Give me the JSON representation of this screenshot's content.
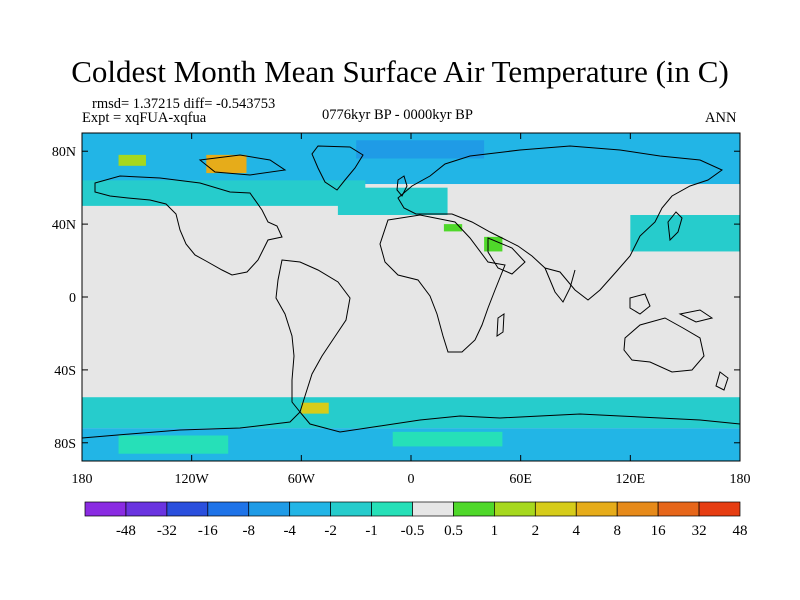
{
  "title": "Coldest Month Mean Surface Air Temperature (in C)",
  "stats": "rmsd= 1.37215 diff= -0.543753",
  "experiment": "Expt = xqFUA-xqfua",
  "period": "0776kyr BP - 0000kyr BP",
  "season": "ANN",
  "colors": {
    "background": "#e6e6e6",
    "coastline": "#000000",
    "land_no_change": "#e6e6e6"
  },
  "chart_data": {
    "type": "heatmap",
    "projection": "cylindrical equidistant",
    "xlim": [
      -180,
      180
    ],
    "ylim": [
      -90,
      90
    ],
    "xticks": [
      {
        "value": -180,
        "label": "180"
      },
      {
        "value": -120,
        "label": "120W"
      },
      {
        "value": -60,
        "label": "60W"
      },
      {
        "value": 0,
        "label": "0"
      },
      {
        "value": 60,
        "label": "60E"
      },
      {
        "value": 120,
        "label": "120E"
      },
      {
        "value": 180,
        "label": "180"
      }
    ],
    "yticks": [
      {
        "value": 80,
        "label": "80N"
      },
      {
        "value": 40,
        "label": "40N"
      },
      {
        "value": 0,
        "label": "0"
      },
      {
        "value": -40,
        "label": "40S"
      },
      {
        "value": -80,
        "label": "80S"
      }
    ],
    "colorbar": {
      "colors": [
        "#8a2be2",
        "#6a34e0",
        "#2a4fdd",
        "#1e73e8",
        "#1f9be6",
        "#22b5e6",
        "#26cccc",
        "#26e0b8",
        "#e6e6e6",
        "#4fd82a",
        "#a6d81e",
        "#d6cc1a",
        "#e6ac1a",
        "#e68a1a",
        "#e6661a",
        "#e63d12"
      ],
      "labels": [
        "-48",
        "-32",
        "-16",
        "-8",
        "-4",
        "-2",
        "-1",
        "-0.5",
        "0.5",
        "1",
        "2",
        "4",
        "8",
        "16",
        "32",
        "48"
      ]
    },
    "regions": [
      {
        "lon": [
          -180,
          180
        ],
        "lat": [
          62,
          90
        ],
        "value": -2
      },
      {
        "lon": [
          -180,
          -25
        ],
        "lat": [
          50,
          64
        ],
        "value": -1
      },
      {
        "lon": [
          -40,
          20
        ],
        "lat": [
          45,
          60
        ],
        "value": -1
      },
      {
        "lon": [
          -30,
          40
        ],
        "lat": [
          76,
          86
        ],
        "value": -4
      },
      {
        "lon": [
          120,
          180
        ],
        "lat": [
          25,
          45
        ],
        "value": -1
      },
      {
        "lon": [
          -180,
          180
        ],
        "lat": [
          -72,
          -55
        ],
        "value": -1
      },
      {
        "lon": [
          -180,
          180
        ],
        "lat": [
          -90,
          -72
        ],
        "value": -2
      },
      {
        "lon": [
          -160,
          -100
        ],
        "lat": [
          -86,
          -76
        ],
        "value": -0.5
      },
      {
        "lon": [
          -10,
          50
        ],
        "lat": [
          -82,
          -74
        ],
        "value": -0.5
      },
      {
        "lon": [
          -160,
          -145
        ],
        "lat": [
          72,
          78
        ],
        "value": 2
      },
      {
        "lon": [
          -112,
          -90
        ],
        "lat": [
          68,
          78
        ],
        "value": 8
      },
      {
        "lon": [
          -60,
          -45
        ],
        "lat": [
          -64,
          -58
        ],
        "value": 4
      },
      {
        "lon": [
          40,
          50
        ],
        "lat": [
          25,
          33
        ],
        "value": 1
      },
      {
        "lon": [
          18,
          28
        ],
        "lat": [
          36,
          40
        ],
        "value": 1
      }
    ]
  }
}
